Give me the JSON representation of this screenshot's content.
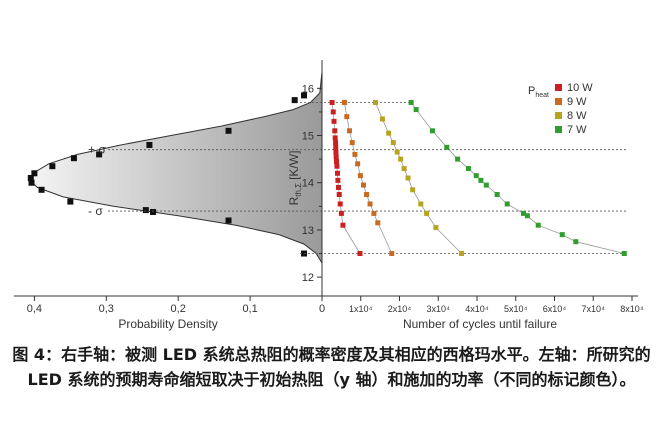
{
  "chart_data": [
    {
      "type": "area",
      "xlabel": "Probability Density",
      "x_reversed": true,
      "xlim": [
        0.42,
        0
      ],
      "x_ticks": [
        "0,4",
        "0,3",
        "0,2",
        "0,1",
        "0"
      ],
      "x_tick_values": [
        0.4,
        0.3,
        0.2,
        0.1,
        0
      ],
      "ylim": [
        11.6,
        16.6
      ],
      "annotations": [
        "+ σ",
        "- σ"
      ],
      "sigma_levels": [
        14.7,
        13.4
      ],
      "grid": false,
      "curve": [
        {
          "y": 16.35,
          "x": 0.0
        },
        {
          "y": 15.9,
          "x": 0.003
        },
        {
          "y": 15.7,
          "x": 0.016
        },
        {
          "y": 15.55,
          "x": 0.04
        },
        {
          "y": 15.4,
          "x": 0.08
        },
        {
          "y": 15.2,
          "x": 0.14
        },
        {
          "y": 15.0,
          "x": 0.21
        },
        {
          "y": 14.8,
          "x": 0.28
        },
        {
          "y": 14.6,
          "x": 0.34
        },
        {
          "y": 14.4,
          "x": 0.38
        },
        {
          "y": 14.2,
          "x": 0.402
        },
        {
          "y": 14.05,
          "x": 0.406
        },
        {
          "y": 13.9,
          "x": 0.396
        },
        {
          "y": 13.7,
          "x": 0.36
        },
        {
          "y": 13.5,
          "x": 0.29
        },
        {
          "y": 13.3,
          "x": 0.2
        },
        {
          "y": 13.1,
          "x": 0.12
        },
        {
          "y": 12.9,
          "x": 0.06
        },
        {
          "y": 12.7,
          "x": 0.025
        },
        {
          "y": 12.5,
          "x": 0.008
        },
        {
          "y": 12.3,
          "x": 0.0
        }
      ],
      "points": [
        {
          "x": 0.038,
          "y": 15.75
        },
        {
          "x": 0.025,
          "y": 15.85
        },
        {
          "x": 0.13,
          "y": 15.1
        },
        {
          "x": 0.24,
          "y": 14.8
        },
        {
          "x": 0.31,
          "y": 14.6
        },
        {
          "x": 0.345,
          "y": 14.52
        },
        {
          "x": 0.375,
          "y": 14.35
        },
        {
          "x": 0.4,
          "y": 14.2
        },
        {
          "x": 0.405,
          "y": 14.1
        },
        {
          "x": 0.404,
          "y": 14.0
        },
        {
          "x": 0.39,
          "y": 13.85
        },
        {
          "x": 0.35,
          "y": 13.6
        },
        {
          "x": 0.245,
          "y": 13.42
        },
        {
          "x": 0.235,
          "y": 13.38
        },
        {
          "x": 0.13,
          "y": 13.2
        },
        {
          "x": 0.025,
          "y": 12.5
        }
      ]
    },
    {
      "type": "scatter",
      "xlabel": "Number of cycles until failure",
      "ylabel": "R_th,Σ [K/W]",
      "ylabel_main": "R",
      "ylabel_sub": "th,Σ",
      "ylabel_unit": "[K/W]",
      "xlim": [
        0,
        80000
      ],
      "x_ticks": [
        "0",
        "1x10⁴",
        "2x10⁴",
        "3x10⁴",
        "4x10⁴",
        "5x10⁴",
        "6x10⁴",
        "7x10⁴",
        "8x10⁴"
      ],
      "x_tick_values": [
        0,
        10000,
        20000,
        30000,
        40000,
        50000,
        60000,
        70000,
        80000
      ],
      "ylim": [
        11.6,
        16.6
      ],
      "y_ticks": [
        "12",
        "13",
        "14",
        "15",
        "16"
      ],
      "y_tick_values": [
        12,
        13,
        14,
        15,
        16
      ],
      "grid": false,
      "legend_title_main": "P",
      "legend_title_sub": "heat",
      "legend_position": "top-right",
      "reference_lines": [
        15.7,
        14.7,
        13.4,
        12.5
      ],
      "series": [
        {
          "name": "10 W",
          "color": "#cc1f1f",
          "points": [
            [
              2600,
              15.7
            ],
            [
              2900,
              15.5
            ],
            [
              3100,
              15.3
            ],
            [
              3300,
              15.1
            ],
            [
              3400,
              14.95
            ],
            [
              3500,
              14.85
            ],
            [
              3550,
              14.75
            ],
            [
              3600,
              14.65
            ],
            [
              3650,
              14.55
            ],
            [
              3750,
              14.45
            ],
            [
              3850,
              14.35
            ],
            [
              4000,
              14.2
            ],
            [
              4100,
              14.05
            ],
            [
              4250,
              13.9
            ],
            [
              4450,
              13.75
            ],
            [
              4700,
              13.55
            ],
            [
              5000,
              13.35
            ],
            [
              5400,
              13.1
            ],
            [
              9800,
              12.5
            ]
          ]
        },
        {
          "name": "9 W",
          "color": "#c96a22",
          "points": [
            [
              5800,
              15.7
            ],
            [
              6400,
              15.4
            ],
            [
              7100,
              15.1
            ],
            [
              7800,
              14.85
            ],
            [
              8500,
              14.6
            ],
            [
              9200,
              14.4
            ],
            [
              9900,
              14.15
            ],
            [
              10700,
              13.95
            ],
            [
              11500,
              13.75
            ],
            [
              12400,
              13.55
            ],
            [
              13400,
              13.35
            ],
            [
              14400,
              13.15
            ],
            [
              18000,
              12.5
            ]
          ]
        },
        {
          "name": "8 W",
          "color": "#b8a31f",
          "points": [
            [
              13800,
              15.7
            ],
            [
              15600,
              15.35
            ],
            [
              17200,
              15.05
            ],
            [
              18400,
              14.85
            ],
            [
              19400,
              14.65
            ],
            [
              20300,
              14.5
            ],
            [
              21200,
              14.3
            ],
            [
              22200,
              14.1
            ],
            [
              23400,
              13.85
            ],
            [
              25500,
              13.55
            ],
            [
              27000,
              13.35
            ],
            [
              29400,
              13.05
            ],
            [
              36000,
              12.5
            ]
          ]
        },
        {
          "name": "7 W",
          "color": "#2f9e2f",
          "points": [
            [
              23000,
              15.7
            ],
            [
              24300,
              15.55
            ],
            [
              28500,
              15.1
            ],
            [
              32200,
              14.75
            ],
            [
              35000,
              14.5
            ],
            [
              37800,
              14.3
            ],
            [
              39800,
              14.15
            ],
            [
              41000,
              14.05
            ],
            [
              42400,
              13.95
            ],
            [
              45200,
              13.75
            ],
            [
              47800,
              13.55
            ],
            [
              52000,
              13.35
            ],
            [
              53000,
              13.3
            ],
            [
              55800,
              13.1
            ],
            [
              62000,
              12.9
            ],
            [
              65500,
              12.75
            ],
            [
              78000,
              12.5
            ]
          ]
        }
      ]
    }
  ],
  "caption": {
    "text": "图 4：右手轴：被测 LED 系统总热阻的概率密度及其相应的西格玛水平。左轴：所研究的 LED 系统的预期寿命缩短取决于初始热阻（y 轴）和施加的功率（不同的标记颜色）。"
  }
}
